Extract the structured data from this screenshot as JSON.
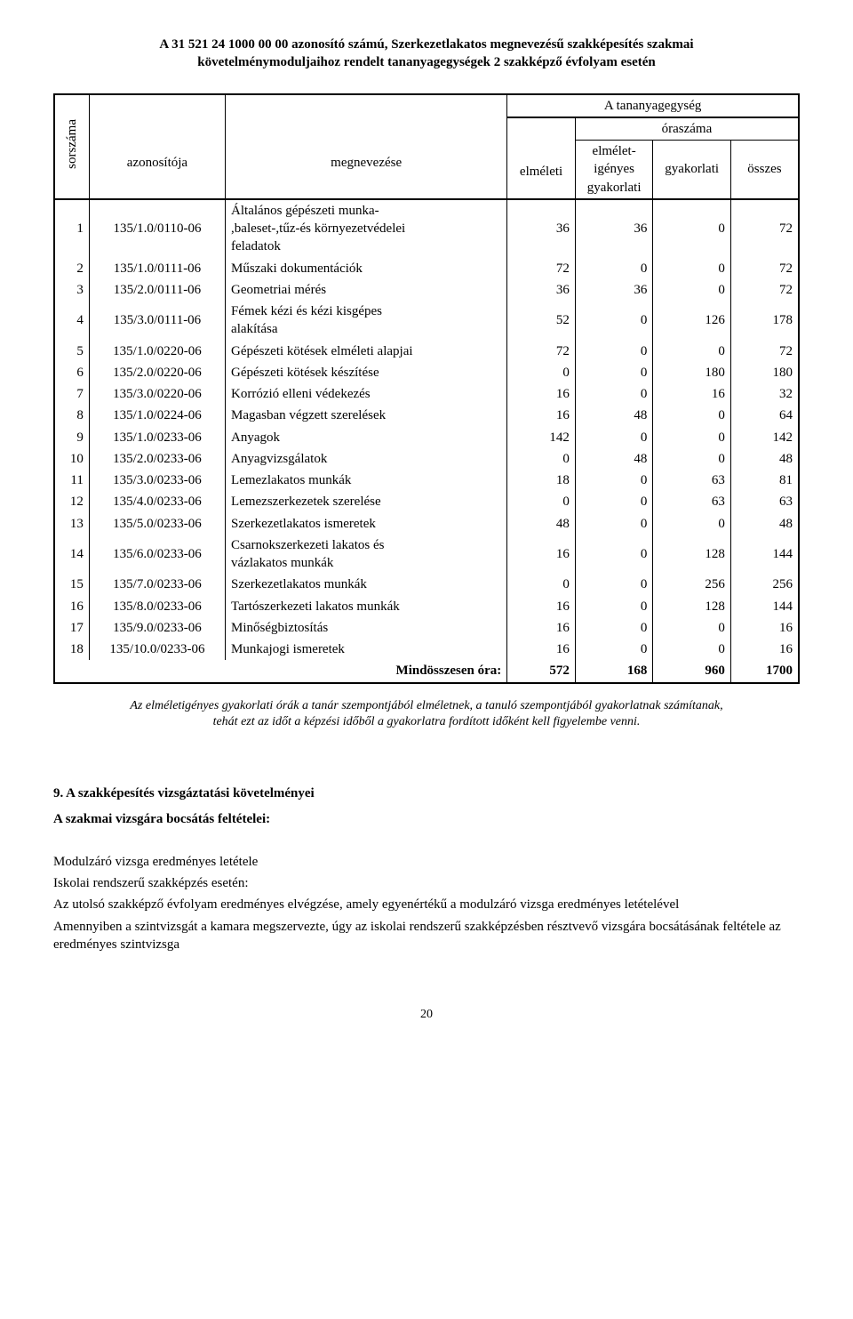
{
  "title_lines": [
    "A 31 521 24 1000 00 00 azonosító számú, Szerkezetlakatos megnevezésű szakképesítés szakmai",
    "követelménymoduljaihoz rendelt tananyagegységek 2 szakképző évfolyam esetén"
  ],
  "table": {
    "header": {
      "sorszama": "sorszáma",
      "azonositoja": "azonosítója",
      "megnevezese": "megnevezése",
      "tananyagegyseg": "A tananyagegység",
      "oraszama": "óraszáma",
      "elmeleti": "elméleti",
      "elmeletigenyes": "elmélet-\nigényes\ngyakorlati",
      "gyakorlati": "gyakorlati",
      "osszes": "összes"
    },
    "rows": [
      {
        "n": "1",
        "id": "135/1.0/0110-06",
        "name": "Általános gépészeti munka-\n,baleset-,tűz-és környezetvédelei\nfeladatok",
        "e": "36",
        "ei": "36",
        "g": "0",
        "o": "72"
      },
      {
        "n": "2",
        "id": "135/1.0/0111-06",
        "name": "Műszaki dokumentációk",
        "e": "72",
        "ei": "0",
        "g": "0",
        "o": "72"
      },
      {
        "n": "3",
        "id": "135/2.0/0111-06",
        "name": "Geometriai mérés",
        "e": "36",
        "ei": "36",
        "g": "0",
        "o": "72"
      },
      {
        "n": "4",
        "id": "135/3.0/0111-06",
        "name": "Fémek kézi és kézi kisgépes\nalakítása",
        "e": "52",
        "ei": "0",
        "g": "126",
        "o": "178"
      },
      {
        "n": "5",
        "id": "135/1.0/0220-06",
        "name": "Gépészeti kötések elméleti alapjai",
        "e": "72",
        "ei": "0",
        "g": "0",
        "o": "72"
      },
      {
        "n": "6",
        "id": "135/2.0/0220-06",
        "name": "Gépészeti kötések készítése",
        "e": "0",
        "ei": "0",
        "g": "180",
        "o": "180"
      },
      {
        "n": "7",
        "id": "135/3.0/0220-06",
        "name": "Korrózió elleni védekezés",
        "e": "16",
        "ei": "0",
        "g": "16",
        "o": "32"
      },
      {
        "n": "8",
        "id": "135/1.0/0224-06",
        "name": " Magasban végzett szerelések",
        "e": "16",
        "ei": "48",
        "g": "0",
        "o": "64"
      },
      {
        "n": "9",
        "id": "135/1.0/0233-06",
        "name": "Anyagok",
        "e": "142",
        "ei": "0",
        "g": "0",
        "o": "142"
      },
      {
        "n": "10",
        "id": "135/2.0/0233-06",
        "name": "Anyagvizsgálatok",
        "e": "0",
        "ei": "48",
        "g": "0",
        "o": "48"
      },
      {
        "n": "11",
        "id": "135/3.0/0233-06",
        "name": "Lemezlakatos munkák",
        "e": "18",
        "ei": "0",
        "g": "63",
        "o": "81"
      },
      {
        "n": "12",
        "id": "135/4.0/0233-06",
        "name": "Lemezszerkezetek szerelése",
        "e": "0",
        "ei": "0",
        "g": "63",
        "o": "63"
      },
      {
        "n": "13",
        "id": "135/5.0/0233-06",
        "name": "Szerkezetlakatos ismeretek",
        "e": "48",
        "ei": "0",
        "g": "0",
        "o": "48"
      },
      {
        "n": "14",
        "id": "135/6.0/0233-06",
        "name": "Csarnokszerkezeti lakatos és\nvázlakatos munkák",
        "e": "16",
        "ei": "0",
        "g": "128",
        "o": "144"
      },
      {
        "n": "15",
        "id": "135/7.0/0233-06",
        "name": "Szerkezetlakatos munkák",
        "e": "0",
        "ei": "0",
        "g": "256",
        "o": "256"
      },
      {
        "n": "16",
        "id": "135/8.0/0233-06",
        "name": "Tartószerkezeti lakatos munkák",
        "e": "16",
        "ei": "0",
        "g": "128",
        "o": "144"
      },
      {
        "n": "17",
        "id": "135/9.0/0233-06",
        "name": "Minőségbiztosítás",
        "e": "16",
        "ei": "0",
        "g": "0",
        "o": "16"
      },
      {
        "n": "18",
        "id": "135/10.0/0233-06",
        "name": "Munkajogi ismeretek",
        "e": "16",
        "ei": "0",
        "g": "0",
        "o": "16"
      }
    ],
    "total": {
      "label": "Mindösszesen óra:",
      "e": "572",
      "ei": "168",
      "g": "960",
      "o": "1700"
    }
  },
  "note_lines": [
    "Az elméletigényes gyakorlati órák a tanár szempontjából elméletnek, a tanuló szempontjából gyakorlatnak számítanak,",
    "tehát ezt az időt a képzési időből a gyakorlatra fordított időként kell figyelembe venni."
  ],
  "section9": {
    "heading": "9.    A szakképesítés vizsgáztatási követelményei",
    "sub": "A szakmai vizsgára bocsátás feltételei:",
    "paras": [
      "Modulzáró vizsga eredményes letétele",
      "Iskolai rendszerű szakképzés esetén:",
      "Az utolsó szakképző évfolyam eredményes elvégzése, amely egyenértékű a modulzáró vizsga eredményes letételével",
      "Amennyiben a szintvizsgát a kamara megszervezte, úgy az iskolai rendszerű szakképzésben résztvevő vizsgára bocsátásának feltétele az eredményes szintvizsga"
    ]
  },
  "page_number": "20"
}
